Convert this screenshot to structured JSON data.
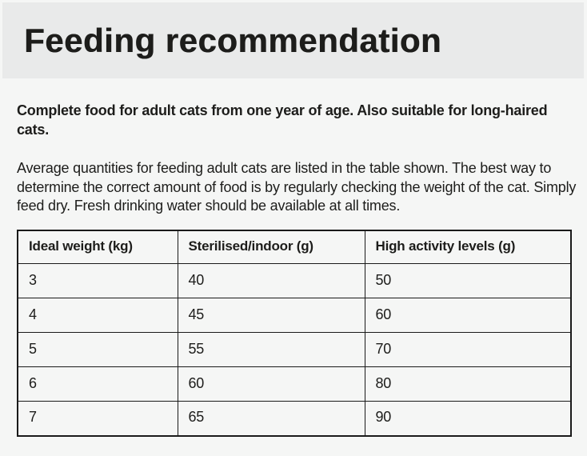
{
  "colors": {
    "page_bg": "#f5f6f5",
    "banner_bg": "#e9eaea",
    "text": "#1d1d1b",
    "table_border": "#1a1a1a"
  },
  "header": {
    "title": "Feeding recommendation"
  },
  "intro": {
    "text": "Complete food for adult cats from one year of age. Also suitable for long-haired cats."
  },
  "description": {
    "text": "Average quantities for feeding adult cats are listed in the table shown. The best way to determine the correct amount of food is by regularly checking the weight of the cat. Simply feed dry. Fresh drinking water should be available at all times."
  },
  "chart_data": {
    "type": "table",
    "title": "Feeding recommendation",
    "columns": [
      "Ideal weight (kg)",
      "Sterilised/indoor (g)",
      "High activity levels (g)"
    ],
    "rows": [
      [
        "3",
        "40",
        "50"
      ],
      [
        "4",
        "45",
        "60"
      ],
      [
        "5",
        "55",
        "70"
      ],
      [
        "6",
        "60",
        "80"
      ],
      [
        "7",
        "65",
        "90"
      ]
    ]
  }
}
